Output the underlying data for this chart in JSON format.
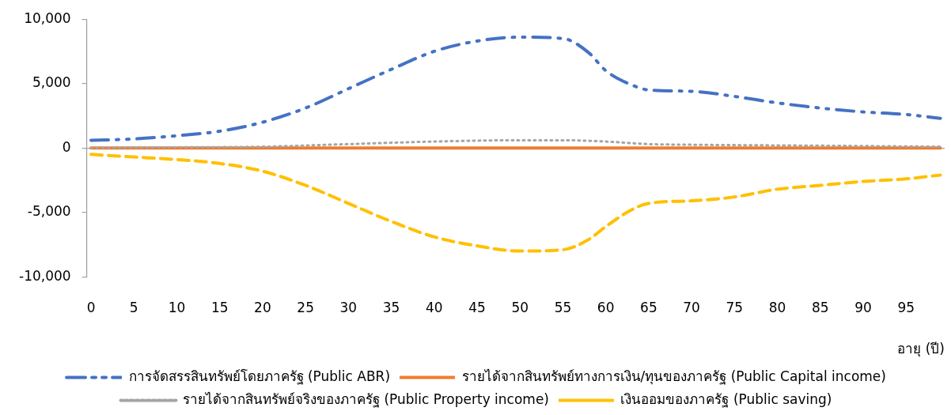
{
  "chart_data": {
    "type": "line",
    "xlabel": "อายุ (ปี)",
    "xlim": [
      -0.5,
      99.5
    ],
    "xticks": [
      0,
      5,
      10,
      15,
      20,
      25,
      30,
      35,
      40,
      45,
      50,
      55,
      60,
      65,
      70,
      75,
      80,
      85,
      90,
      95
    ],
    "ylim": [
      -10000,
      10000
    ],
    "yticks": [
      {
        "value": -10000,
        "label": "-10,000"
      },
      {
        "value": -5000,
        "label": "-5,000"
      },
      0,
      {
        "value": 5000,
        "label": "5,000"
      },
      {
        "value": 10000,
        "label": "10,000"
      }
    ],
    "legend": "bottom",
    "grid": false,
    "marker": "none",
    "series": [
      {
        "name": "การจัดสรรสินทรัพย์โดยภาครัฐ (Public ABR)",
        "color": "#4472c4",
        "line_style": "dashdot",
        "x": [
          0,
          5,
          10,
          15,
          20,
          25,
          30,
          35,
          40,
          45,
          50,
          55,
          58,
          60,
          63,
          65,
          70,
          75,
          80,
          85,
          90,
          95,
          99
        ],
        "values": [
          600,
          700,
          950,
          1300,
          2000,
          3100,
          4600,
          6100,
          7500,
          8300,
          8600,
          8500,
          7400,
          6000,
          4900,
          4500,
          4400,
          4000,
          3500,
          3100,
          2800,
          2600,
          2300
        ]
      },
      {
        "name": "รายได้จากสินทรัพย์ทางการเงิน/ทุนของภาครัฐ (Public Capital income)",
        "color": "#ed7d31",
        "line_style": "solid",
        "x": [
          0,
          25,
          50,
          75,
          99
        ],
        "values": [
          0,
          0,
          0,
          0,
          0
        ]
      },
      {
        "name": "รายได้จากสินทรัพย์จริงของภาครัฐ (Public Property income)",
        "color": "#a5a5a5",
        "line_style": "dotted",
        "x": [
          0,
          10,
          20,
          30,
          40,
          50,
          55,
          60,
          65,
          70,
          80,
          90,
          99
        ],
        "values": [
          0,
          50,
          100,
          300,
          500,
          600,
          600,
          500,
          300,
          250,
          200,
          150,
          100
        ]
      },
      {
        "name": "เงินออมของภาครัฐ (Public saving)",
        "color": "#ffc000",
        "line_style": "dashed",
        "x": [
          0,
          5,
          10,
          15,
          20,
          25,
          30,
          35,
          40,
          45,
          50,
          55,
          58,
          60,
          63,
          65,
          70,
          75,
          80,
          85,
          90,
          95,
          99
        ],
        "values": [
          -500,
          -700,
          -900,
          -1200,
          -1800,
          -2900,
          -4300,
          -5700,
          -6900,
          -7600,
          -8000,
          -7900,
          -7100,
          -6100,
          -4800,
          -4300,
          -4100,
          -3800,
          -3200,
          -2900,
          -2600,
          -2400,
          -2100
        ]
      }
    ]
  }
}
